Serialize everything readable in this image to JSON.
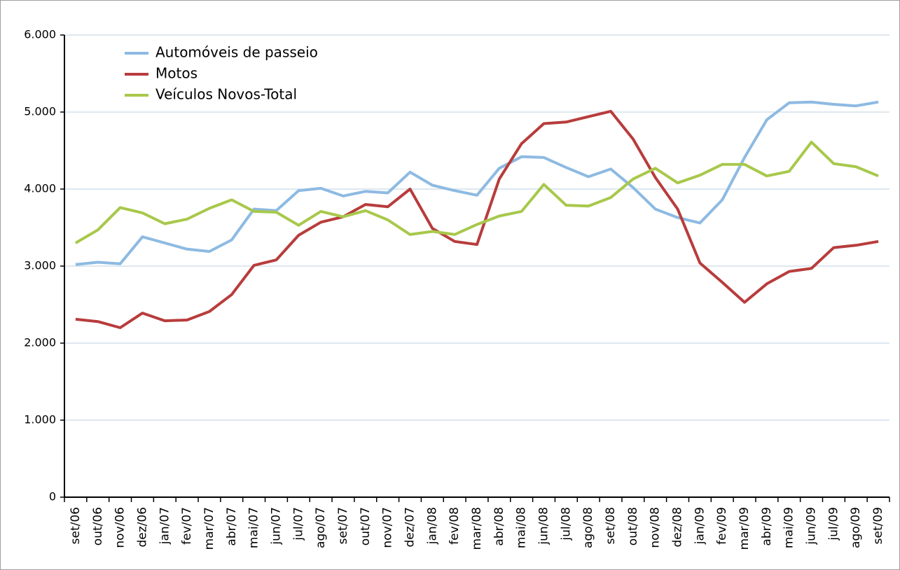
{
  "chart_data": {
    "type": "line",
    "categories": [
      "set/06",
      "out/06",
      "nov/06",
      "dez/06",
      "jan/07",
      "fev/07",
      "mar/07",
      "abr/07",
      "mai/07",
      "jun/07",
      "jul/07",
      "ago/07",
      "set/07",
      "out/07",
      "nov/07",
      "dez/07",
      "jan/08",
      "fev/08",
      "mar/08",
      "abr/08",
      "mai/08",
      "jun/08",
      "jul/08",
      "ago/08",
      "set/08",
      "out/08",
      "nov/08",
      "dez/08",
      "jan/09",
      "fev/09",
      "mar/09",
      "abr/09",
      "mai/09",
      "jun/09",
      "jul/09",
      "ago/09",
      "set/09"
    ],
    "series": [
      {
        "name": "Automóveis de passeio",
        "color": "#8dbae2",
        "values": [
          3020,
          3050,
          3030,
          3380,
          3300,
          3220,
          3190,
          3340,
          3740,
          3720,
          3980,
          4010,
          3910,
          3970,
          3950,
          4220,
          4050,
          3980,
          3920,
          4270,
          4420,
          4410,
          4280,
          4160,
          4260,
          4020,
          3740,
          3630,
          3560,
          3860,
          4410,
          4900,
          5120,
          5130,
          5100,
          5080,
          5130
        ]
      },
      {
        "name": "Motos",
        "color": "#b83c3c",
        "values": [
          2310,
          2280,
          2200,
          2390,
          2290,
          2300,
          2410,
          2630,
          3010,
          3080,
          3400,
          3570,
          3640,
          3800,
          3770,
          4000,
          3490,
          3320,
          3280,
          4130,
          4590,
          4850,
          4870,
          4940,
          5010,
          4650,
          4150,
          3740,
          3040,
          2790,
          2530,
          2770,
          2930,
          2970,
          3240,
          3270,
          3320
        ]
      },
      {
        "name": "Veículos Novos-Total",
        "color": "#a8c84b",
        "values": [
          3300,
          3470,
          3760,
          3690,
          3550,
          3610,
          3750,
          3860,
          3710,
          3700,
          3530,
          3710,
          3640,
          3720,
          3600,
          3410,
          3450,
          3410,
          3540,
          3650,
          3710,
          4060,
          3790,
          3780,
          3890,
          4130,
          4270,
          4080,
          4180,
          4320,
          4320,
          4170,
          4230,
          4610,
          4330,
          4290,
          4170
        ]
      }
    ],
    "ylim": [
      0,
      6000
    ],
    "yticks": [
      0,
      {
        "value": 1000,
        "label": "1.000"
      },
      {
        "value": 2000,
        "label": "2.000"
      },
      {
        "value": 3000,
        "label": "3.000"
      },
      {
        "value": 4000,
        "label": "4.000"
      },
      {
        "value": 5000,
        "label": "5.000"
      },
      {
        "value": 6000,
        "label": "6.000"
      }
    ],
    "grid": true,
    "legend": "top-left"
  }
}
